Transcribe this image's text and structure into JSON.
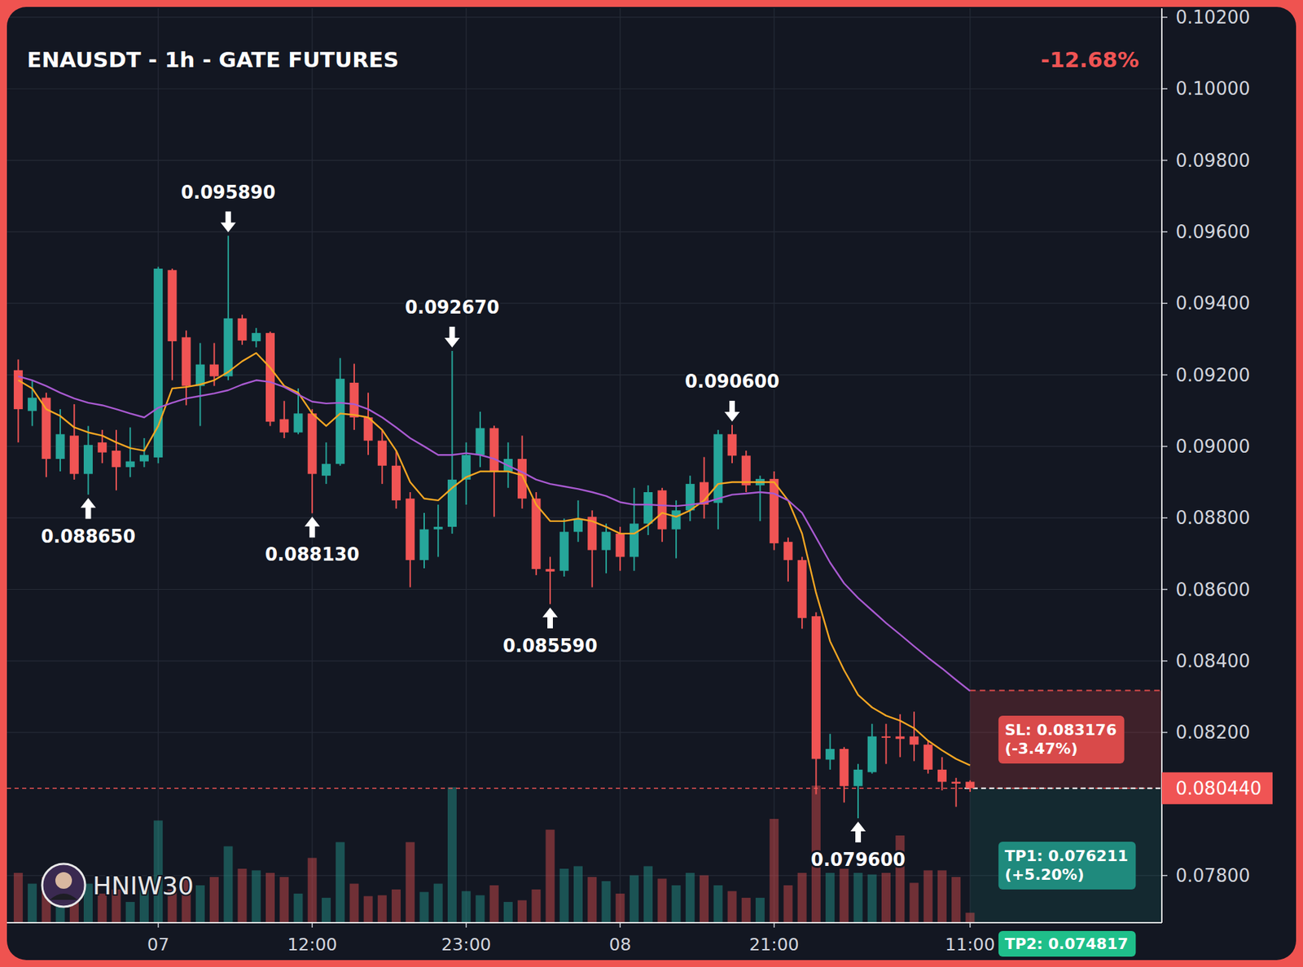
{
  "chart_data": {
    "type": "candlestick",
    "title": "ENAUSDT - 1h - GATE FUTURES",
    "change": "-12.68%",
    "watermark": "HNIW30",
    "categories": [
      null,
      null,
      null,
      null,
      null,
      null,
      null,
      null,
      null,
      null,
      "07",
      null,
      null,
      null,
      null,
      null,
      null,
      null,
      null,
      null,
      null,
      "12:00",
      null,
      null,
      null,
      null,
      null,
      null,
      null,
      null,
      null,
      null,
      "23:00",
      null,
      null,
      null,
      null,
      null,
      null,
      null,
      null,
      null,
      null,
      "08",
      null,
      null,
      null,
      null,
      null,
      null,
      null,
      null,
      null,
      null,
      "21:00",
      null,
      null,
      null,
      null,
      null,
      null,
      null,
      null,
      null,
      null,
      null,
      null,
      null,
      "11:00"
    ],
    "candles": {
      "open": [
        0.09213,
        0.09099,
        0.09136,
        0.08965,
        0.0903,
        0.08923,
        0.09011,
        0.08988,
        0.08942,
        0.08958,
        0.08969,
        0.09493,
        0.09305,
        0.09169,
        0.09229,
        0.09196,
        0.09358,
        0.09294,
        0.09317,
        0.09076,
        0.09039,
        0.09092,
        0.08918,
        0.08951,
        0.09178,
        0.09081,
        0.09016,
        0.08946,
        0.08854,
        0.08682,
        0.08768,
        0.08775,
        0.08907,
        0.08976,
        0.09051,
        0.0893,
        0.08965,
        0.08854,
        0.08657,
        0.08652,
        0.08761,
        0.08803,
        0.0871,
        0.08756,
        0.08691,
        0.08784,
        0.08877,
        0.08768,
        0.08821,
        0.089,
        0.08842,
        0.09034,
        0.08974,
        0.08891,
        0.08909,
        0.08733,
        0.08682,
        0.08525,
        0.08124,
        0.08154,
        0.0805,
        0.08089,
        0.08189,
        0.08189,
        0.08189,
        0.08166,
        0.08096,
        0.08062,
        0.08062
      ],
      "high": [
        0.09243,
        0.09185,
        0.0915,
        0.09104,
        0.09118,
        0.09057,
        0.09046,
        0.09046,
        0.09053,
        0.09023,
        0.09502,
        0.09497,
        0.09324,
        0.09289,
        0.09289,
        0.09589,
        0.09368,
        0.09331,
        0.09321,
        0.09127,
        0.09162,
        0.09104,
        0.09011,
        0.09247,
        0.09231,
        0.0915,
        0.09046,
        0.08988,
        0.08872,
        0.08814,
        0.08837,
        0.09267,
        0.09011,
        0.09097,
        0.09058,
        0.09011,
        0.0903,
        0.08872,
        0.08691,
        0.08798,
        0.08849,
        0.08821,
        0.08784,
        0.08775,
        0.08884,
        0.08891,
        0.08884,
        0.08849,
        0.08918,
        0.0897,
        0.09046,
        0.0906,
        0.08988,
        0.08918,
        0.0893,
        0.08745,
        0.08691,
        0.08536,
        0.08196,
        0.08159,
        0.08112,
        0.08224,
        0.08224,
        0.08251,
        0.08258,
        0.08177,
        0.08131,
        0.08073,
        0.08066
      ],
      "low": [
        0.09011,
        0.09057,
        0.08914,
        0.0893,
        0.08907,
        0.08865,
        0.08953,
        0.08877,
        0.08914,
        0.08942,
        0.08953,
        0.09185,
        0.09115,
        0.09057,
        0.09169,
        0.09185,
        0.09284,
        0.09277,
        0.09057,
        0.09023,
        0.09034,
        0.08813,
        0.08895,
        0.08946,
        0.09046,
        0.08976,
        0.08895,
        0.08826,
        0.08606,
        0.08659,
        0.08691,
        0.08756,
        0.08837,
        0.08942,
        0.08803,
        0.08884,
        0.08826,
        0.0864,
        0.08559,
        0.08636,
        0.08733,
        0.08606,
        0.08645,
        0.08652,
        0.08652,
        0.08752,
        0.08733,
        0.08687,
        0.08791,
        0.08798,
        0.08768,
        0.08953,
        0.08872,
        0.08791,
        0.0871,
        0.08622,
        0.0849,
        0.08027,
        0.08096,
        0.08004,
        0.0796,
        0.08085,
        0.08112,
        0.08131,
        0.0812,
        0.08085,
        0.08038,
        0.07992,
        0.08034
      ],
      "close": [
        0.09104,
        0.09136,
        0.08965,
        0.09034,
        0.08923,
        0.09004,
        0.08983,
        0.08942,
        0.08958,
        0.08976,
        0.09497,
        0.09294,
        0.09169,
        0.09229,
        0.09196,
        0.09358,
        0.09296,
        0.09317,
        0.09069,
        0.09039,
        0.09092,
        0.08923,
        0.08951,
        0.09189,
        0.09081,
        0.09016,
        0.08946,
        0.08849,
        0.08682,
        0.08768,
        0.08775,
        0.08907,
        0.08976,
        0.09051,
        0.0893,
        0.08965,
        0.08854,
        0.08657,
        0.0865,
        0.08761,
        0.08798,
        0.0871,
        0.08761,
        0.08691,
        0.08784,
        0.08872,
        0.08768,
        0.08821,
        0.08895,
        0.08837,
        0.09034,
        0.08974,
        0.08891,
        0.08909,
        0.08729,
        0.08682,
        0.0852,
        0.08126,
        0.08154,
        0.0805,
        0.08096,
        0.08189,
        0.08187,
        0.08182,
        0.08166,
        0.08096,
        0.08062,
        0.08057,
        0.08044
      ],
      "colors": [
        "#26a69a",
        "#f05454"
      ]
    },
    "volume": {
      "values": [
        60,
        47,
        55,
        60,
        65,
        47,
        35,
        40,
        25,
        40,
        123,
        40,
        52,
        45,
        55,
        92,
        65,
        63,
        60,
        55,
        35,
        78,
        30,
        97,
        47,
        32,
        33,
        40,
        97,
        37,
        47,
        163,
        38,
        33,
        45,
        25,
        27,
        40,
        112,
        65,
        68,
        55,
        50,
        35,
        57,
        68,
        53,
        45,
        60,
        57,
        45,
        38,
        30,
        30,
        125,
        45,
        60,
        165,
        60,
        65,
        60,
        58,
        60,
        105,
        48,
        63,
        63,
        55,
        12
      ],
      "ylim": [
        0,
        170
      ]
    },
    "moving_averages": [
      {
        "type": "line",
        "color": "#f5a623",
        "values": [
          0.09185,
          0.09162,
          0.09104,
          0.09085,
          0.09053,
          0.09039,
          0.0903,
          0.09011,
          0.08995,
          0.08988,
          0.09057,
          0.09162,
          0.09166,
          0.09173,
          0.09185,
          0.09208,
          0.09238,
          0.09261,
          0.0922,
          0.09169,
          0.0915,
          0.09092,
          0.09057,
          0.09092,
          0.09088,
          0.09081,
          0.09046,
          0.08988,
          0.089,
          0.08854,
          0.08849,
          0.08884,
          0.08914,
          0.0893,
          0.0893,
          0.0893,
          0.08919,
          0.08837,
          0.08791,
          0.08791,
          0.08798,
          0.08791,
          0.08775,
          0.08756,
          0.08756,
          0.0878,
          0.08814,
          0.08803,
          0.08821,
          0.08849,
          0.08895,
          0.089,
          0.089,
          0.089,
          0.089,
          0.08849,
          0.08756,
          0.0859,
          0.08455,
          0.08374,
          0.08305,
          0.0827,
          0.08247,
          0.08233,
          0.08212,
          0.08177,
          0.0815,
          0.08126,
          0.08108
        ]
      },
      {
        "type": "line",
        "color": "#a95ad1",
        "values": [
          0.09196,
          0.09185,
          0.09169,
          0.0915,
          0.09134,
          0.09122,
          0.09115,
          0.09104,
          0.09092,
          0.09081,
          0.09108,
          0.09122,
          0.09134,
          0.09141,
          0.09148,
          0.09157,
          0.09173,
          0.09185,
          0.0918,
          0.09166,
          0.09145,
          0.09125,
          0.0912,
          0.09122,
          0.09118,
          0.09104,
          0.09081,
          0.09053,
          0.09023,
          0.09,
          0.08976,
          0.08976,
          0.08981,
          0.08976,
          0.08965,
          0.08946,
          0.08928,
          0.08907,
          0.08895,
          0.08888,
          0.08881,
          0.08872,
          0.08861,
          0.08844,
          0.08837,
          0.08837,
          0.08835,
          0.08833,
          0.08837,
          0.08842,
          0.08854,
          0.08865,
          0.08868,
          0.08872,
          0.08868,
          0.08849,
          0.08814,
          0.08745,
          0.08675,
          0.08617,
          0.08576,
          0.08541,
          0.08506,
          0.08474,
          0.08441,
          0.08409,
          0.08379,
          0.08347,
          0.08316
        ]
      }
    ],
    "ylim": [
      0.07668,
      0.10225
    ],
    "yticks": [
      {
        "value": 0.078,
        "label": "0.07800"
      },
      {
        "value": 0.082,
        "label": "0.08200"
      },
      {
        "value": 0.084,
        "label": "0.08400"
      },
      {
        "value": 0.086,
        "label": "0.08600"
      },
      {
        "value": 0.088,
        "label": "0.08800"
      },
      {
        "value": 0.09,
        "label": "0.09000"
      },
      {
        "value": 0.092,
        "label": "0.09200"
      },
      {
        "value": 0.094,
        "label": "0.09400"
      },
      {
        "value": 0.096,
        "label": "0.09600"
      },
      {
        "value": 0.098,
        "label": "0.09800"
      },
      {
        "value": 0.1,
        "label": "0.10000"
      },
      {
        "value": 0.102,
        "label": "0.10200"
      }
    ],
    "grid": true,
    "annotations": [
      {
        "label": "0.088650",
        "value": 0.08865,
        "index": 5,
        "position": "below"
      },
      {
        "label": "0.095890",
        "value": 0.09589,
        "index": 15,
        "position": "above"
      },
      {
        "label": "0.088130",
        "value": 0.08813,
        "index": 21,
        "position": "below"
      },
      {
        "label": "0.092670",
        "value": 0.09267,
        "index": 31,
        "position": "above"
      },
      {
        "label": "0.085590",
        "value": 0.08559,
        "index": 38,
        "position": "below"
      },
      {
        "label": "0.090600",
        "value": 0.0906,
        "index": 51,
        "position": "above"
      },
      {
        "label": "0.079600",
        "value": 0.0796,
        "index": 60,
        "position": "below"
      }
    ],
    "last_price": {
      "value": 0.08044,
      "label": "0.080440",
      "color": "#f05454"
    },
    "stop_loss": {
      "value": 0.083176,
      "label": "SL: 0.083176",
      "change_label": "(-3.47%)",
      "color": "#d94a4a"
    },
    "take_profit": [
      {
        "value": 0.076211,
        "label": "TP1: 0.076211",
        "change_label": "(+5.20%)",
        "color": "#1f8a7d"
      },
      {
        "value": 0.074817,
        "label": "TP2: 0.074817",
        "color": "#1fbf8a"
      }
    ]
  }
}
